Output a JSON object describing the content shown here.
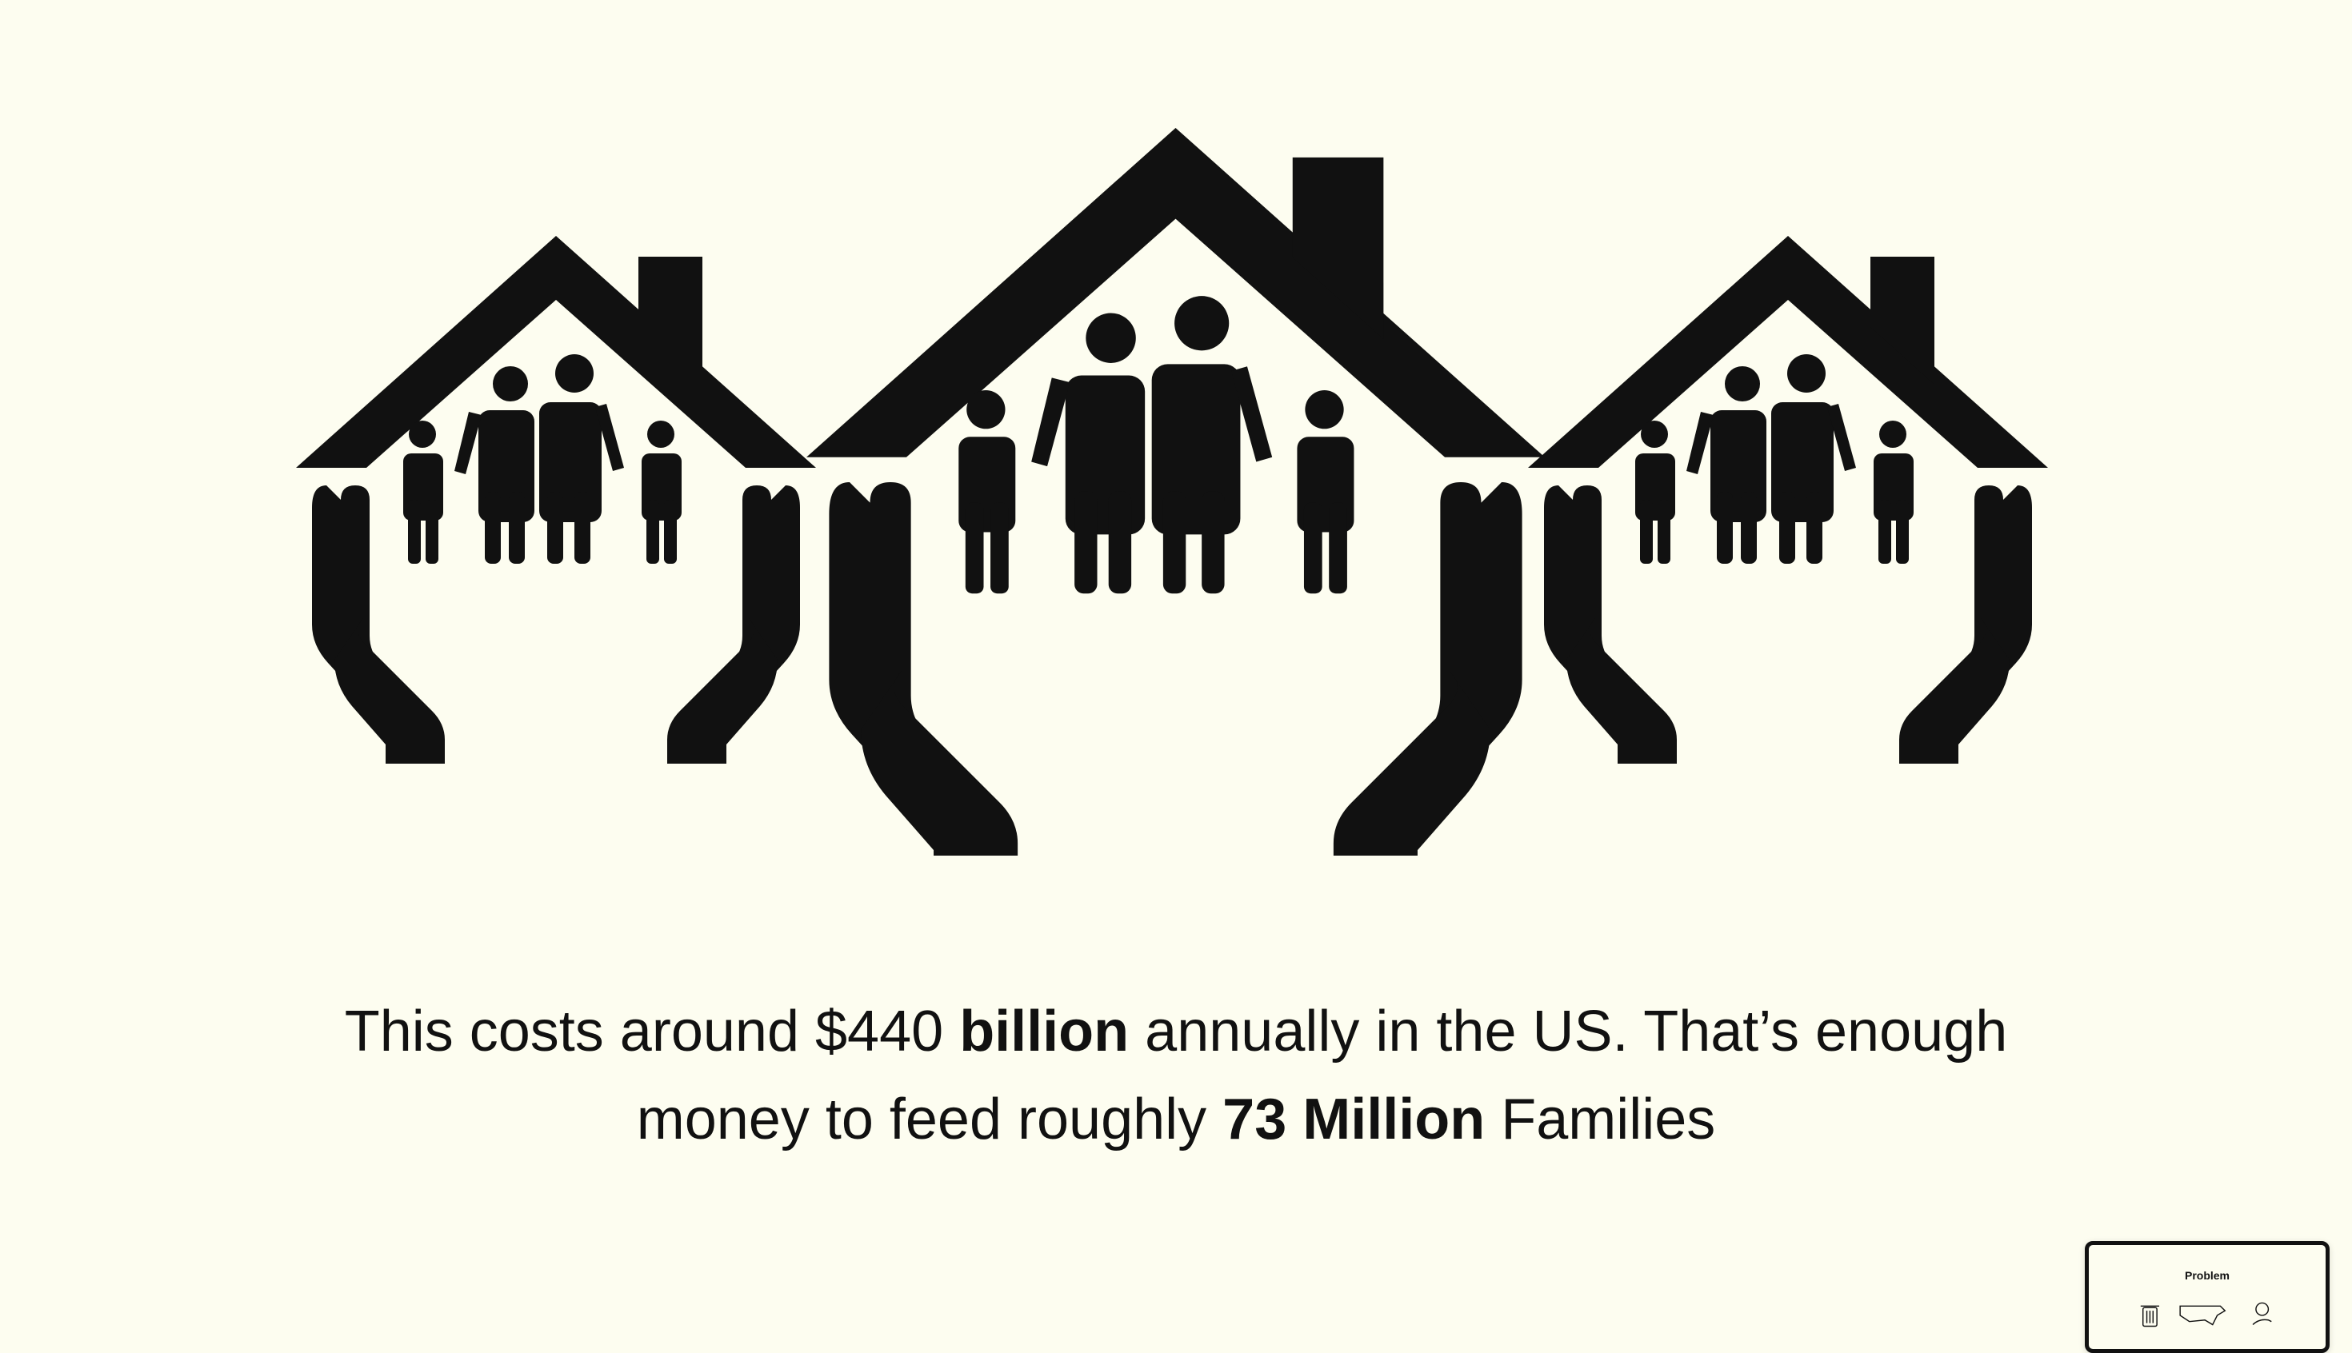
{
  "caption": {
    "part1": "This costs around $440 ",
    "bold1": "billion",
    "part2": " annually in the US. That’s enough money to feed roughly ",
    "bold2": "73 Million",
    "part3": " Families"
  },
  "thumbnail": {
    "title": "Problem",
    "icons": [
      "trash-can-icon",
      "us-map-icon",
      "hand-dollar-icon"
    ]
  },
  "colors": {
    "background": "#fdfdf0",
    "ink": "#111111"
  },
  "illustration": {
    "icon": "family-house-hands-icon",
    "count": 3
  }
}
